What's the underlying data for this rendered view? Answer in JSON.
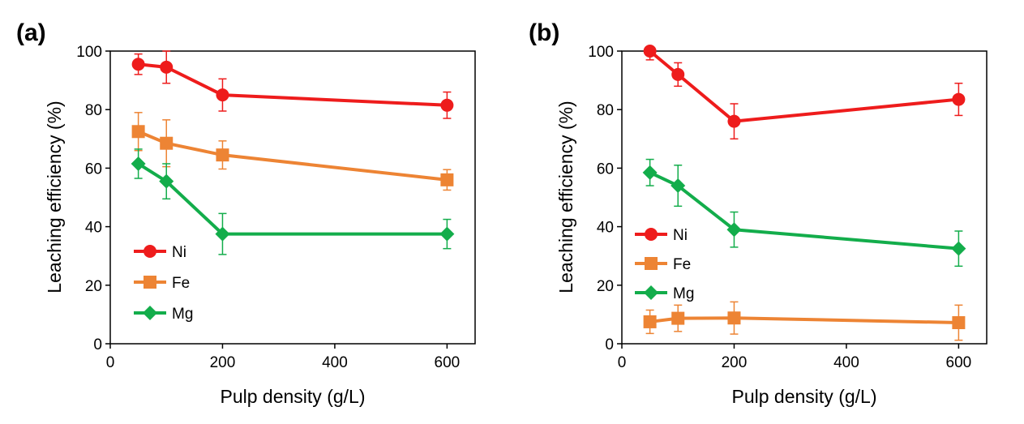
{
  "chart_data": [
    {
      "type": "line",
      "panel_label": "(a)",
      "xlabel": "Pulp density (g/L)",
      "ylabel": "Leaching efficiency (%)",
      "xlim": [
        0,
        650
      ],
      "ylim": [
        0,
        100
      ],
      "xticks": [
        0,
        200,
        400,
        600
      ],
      "yticks": [
        0,
        20,
        40,
        60,
        80,
        100
      ],
      "legend_position": "bottom-left",
      "grid": false,
      "series": [
        {
          "name": "Ni",
          "color": "#ee1c1c",
          "marker": "circle",
          "x": [
            50,
            100,
            200,
            600
          ],
          "y": [
            95.5,
            94.5,
            85,
            81.5
          ],
          "err": [
            3.5,
            5.5,
            5.5,
            4.5
          ]
        },
        {
          "name": "Fe",
          "color": "#ed8434",
          "marker": "square",
          "x": [
            50,
            100,
            200,
            600
          ],
          "y": [
            72.5,
            68.5,
            64.5,
            56
          ],
          "err": [
            6.5,
            8,
            4.8,
            3.5
          ]
        },
        {
          "name": "Mg",
          "color": "#13ad4b",
          "marker": "diamond",
          "x": [
            50,
            100,
            200,
            600
          ],
          "y": [
            61.5,
            55.5,
            37.5,
            37.5
          ],
          "err": [
            5,
            6,
            7,
            5
          ]
        }
      ]
    },
    {
      "type": "line",
      "panel_label": "(b)",
      "xlabel": "Pulp density (g/L)",
      "ylabel": "Leaching efficiency (%)",
      "xlim": [
        0,
        650
      ],
      "ylim": [
        0,
        100
      ],
      "xticks": [
        0,
        200,
        400,
        600
      ],
      "yticks": [
        0,
        20,
        40,
        60,
        80,
        100
      ],
      "legend_position": "middle-left",
      "grid": false,
      "series": [
        {
          "name": "Ni",
          "color": "#ee1c1c",
          "marker": "circle",
          "x": [
            50,
            100,
            200,
            600
          ],
          "y": [
            100,
            92,
            76,
            83.5
          ],
          "err": [
            3,
            4,
            6,
            5.5
          ]
        },
        {
          "name": "Fe",
          "color": "#ed8434",
          "marker": "square",
          "x": [
            50,
            100,
            200,
            600
          ],
          "y": [
            7.5,
            8.7,
            8.8,
            7.2
          ],
          "err": [
            4,
            4.5,
            5.5,
            6
          ]
        },
        {
          "name": "Mg",
          "color": "#13ad4b",
          "marker": "diamond",
          "x": [
            50,
            100,
            200,
            600
          ],
          "y": [
            58.5,
            54,
            39,
            32.5
          ],
          "err": [
            4.5,
            7,
            6,
            6
          ]
        }
      ]
    }
  ]
}
